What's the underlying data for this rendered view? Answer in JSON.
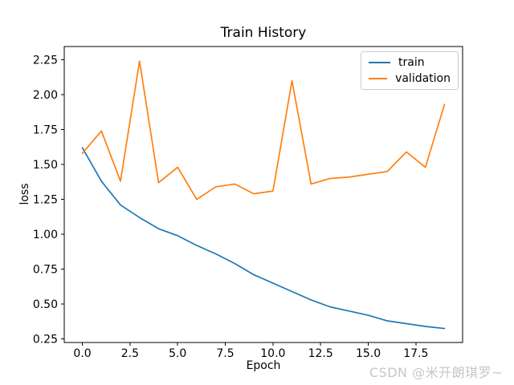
{
  "figure": {
    "watermark": "CSDN @米开朗琪罗~"
  },
  "legend": {
    "position": "upper right",
    "entries": [
      {
        "label": "train",
        "color": "#1f77b4"
      },
      {
        "label": "validation",
        "color": "#ff7f0e"
      }
    ]
  },
  "chart_data": {
    "type": "line",
    "title": "Train History",
    "xlabel": "Epoch",
    "ylabel": "loss",
    "grid": false,
    "legend_position": "upper right",
    "x": [
      0,
      1,
      2,
      3,
      4,
      5,
      6,
      7,
      8,
      9,
      10,
      11,
      12,
      13,
      14,
      15,
      16,
      17,
      18,
      19
    ],
    "series": [
      {
        "name": "train",
        "color": "#1f77b4",
        "values": [
          1.62,
          1.38,
          1.21,
          1.12,
          1.04,
          0.99,
          0.92,
          0.86,
          0.79,
          0.71,
          0.65,
          0.59,
          0.53,
          0.48,
          0.45,
          0.42,
          0.38,
          0.36,
          0.34,
          0.325
        ]
      },
      {
        "name": "validation",
        "color": "#ff7f0e",
        "values": [
          1.58,
          1.74,
          1.38,
          2.24,
          1.37,
          1.48,
          1.25,
          1.34,
          1.36,
          1.29,
          1.31,
          2.1,
          1.36,
          1.4,
          1.41,
          1.43,
          1.45,
          1.59,
          1.48,
          1.93
        ]
      }
    ],
    "xlim": [
      -0.95,
      19.95
    ],
    "ylim": [
      0.225,
      2.345
    ],
    "xticks": {
      "values": [
        0,
        2.5,
        5,
        7.5,
        10,
        12.5,
        15,
        17.5
      ],
      "labels": [
        "0.0",
        "2.5",
        "5.0",
        "7.5",
        "10.0",
        "12.5",
        "15.0",
        "17.5"
      ]
    },
    "yticks": {
      "values": [
        0.25,
        0.5,
        0.75,
        1.0,
        1.25,
        1.5,
        1.75,
        2.0,
        2.25
      ],
      "labels": [
        "0.25",
        "0.50",
        "0.75",
        "1.00",
        "1.25",
        "1.50",
        "1.75",
        "2.00",
        "2.25"
      ]
    }
  }
}
